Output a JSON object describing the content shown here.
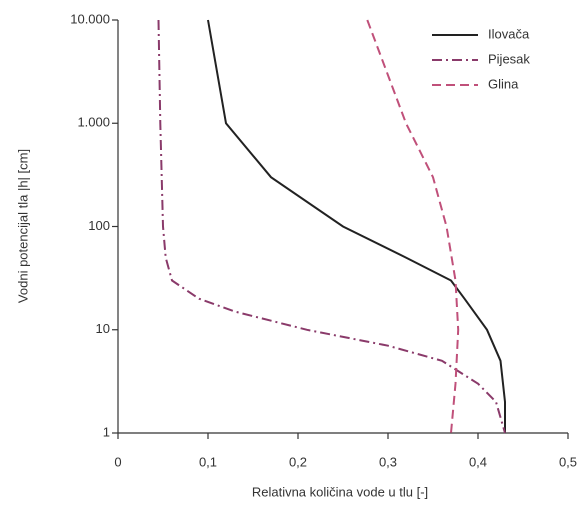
{
  "chart_data": {
    "type": "line",
    "xlabel": "Relativna količina vode u tlu [-]",
    "ylabel": "Vodni potencijal tla |h| [cm]",
    "xlim": [
      0,
      0.5
    ],
    "xticks": [
      0,
      {
        "value": 0.1,
        "label": "0,1"
      },
      {
        "value": 0.2,
        "label": "0,2"
      },
      {
        "value": 0.3,
        "label": "0,3"
      },
      {
        "value": 0.4,
        "label": "0,4"
      },
      {
        "value": 0.5,
        "label": "0,5"
      }
    ],
    "ylim": [
      1,
      10000
    ],
    "yticks": [
      1,
      10,
      100,
      {
        "value": 1000,
        "label": "1.000"
      },
      {
        "value": 10000,
        "label": "10.000"
      }
    ],
    "ylog": true,
    "legend": "upper right",
    "series": [
      {
        "name": "Ilovača",
        "color": "#222222",
        "dash": "none",
        "x": [
          0.1,
          0.12,
          0.17,
          0.25,
          0.32,
          0.37,
          0.385,
          0.41,
          0.425,
          0.43,
          0.43
        ],
        "y": [
          10000,
          1000,
          300,
          100,
          50,
          30,
          20,
          10,
          5,
          2,
          1
        ]
      },
      {
        "name": "Pijesak",
        "color": "#8a3a6a",
        "dash": "10 4 2 4",
        "x": [
          0.045,
          0.047,
          0.05,
          0.053,
          0.06,
          0.09,
          0.13,
          0.21,
          0.3,
          0.36,
          0.4,
          0.42,
          0.43
        ],
        "y": [
          10000,
          1000,
          100,
          50,
          30,
          20,
          15,
          10,
          7,
          5,
          3,
          2,
          1
        ]
      },
      {
        "name": "Glina",
        "color": "#c0507a",
        "dash": "9 5",
        "x": [
          0.277,
          0.32,
          0.35,
          0.365,
          0.375,
          0.378,
          0.375,
          0.37
        ],
        "y": [
          10000,
          1000,
          300,
          100,
          30,
          10,
          3,
          1
        ]
      }
    ]
  }
}
